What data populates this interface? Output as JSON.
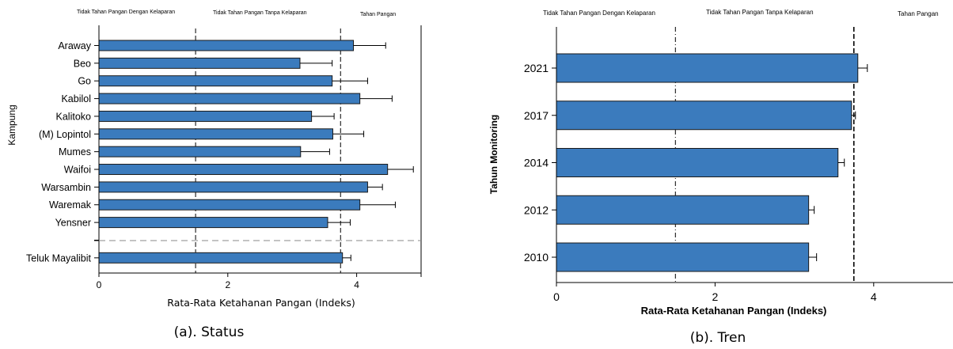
{
  "chart_data": [
    {
      "type": "bar",
      "orientation": "horizontal",
      "caption": "(a). Status",
      "ylabel": "Kampung",
      "xlabel": "Rata-Rata Ketahanan Pangan (Indeks)",
      "xlim": [
        0,
        5
      ],
      "xticks": [
        "0",
        "2",
        "4"
      ],
      "categories": [
        "Araway",
        "Beo",
        "Go",
        "Kabilol",
        "Kalitoko",
        "(M) Lopintol",
        "Mumes",
        "Waifoi",
        "Warsambin",
        "Waremak",
        "Yensner",
        "",
        "Teluk Mayalibit"
      ],
      "values": [
        3.95,
        3.12,
        3.62,
        4.05,
        3.3,
        3.63,
        3.13,
        4.48,
        4.17,
        4.05,
        3.55,
        null,
        3.78
      ],
      "errors": [
        0.5,
        0.5,
        0.55,
        0.5,
        0.35,
        0.48,
        0.45,
        0.4,
        0.23,
        0.55,
        0.35,
        null,
        0.13
      ],
      "reference_lines": [
        {
          "x": 1.5,
          "style": "dashed"
        },
        {
          "x": 3.75,
          "style": "dashed"
        }
      ],
      "zones": [
        "Tidak Tahan Pangan Dengan Kelaparan",
        "Tidak Tahan Pangan Tanpa Kelaparan",
        "Tahan Pangan"
      ],
      "bar_color": "#3b7bbd",
      "grid": false
    },
    {
      "type": "bar",
      "orientation": "horizontal",
      "caption": "(b). Tren",
      "ylabel": "Tahun Monitoring",
      "xlabel": "Rata-Rata Ketahanan Pangan (Indeks)",
      "xlim": [
        0,
        5
      ],
      "xticks": [
        "0",
        "2",
        "4"
      ],
      "categories": [
        "2021",
        "2017",
        "2014",
        "2012",
        "2010"
      ],
      "values": [
        3.8,
        3.72,
        3.55,
        3.18,
        3.18
      ],
      "errors": [
        0.12,
        0.05,
        0.08,
        0.07,
        0.1
      ],
      "reference_lines": [
        {
          "x": 1.5,
          "style": "dash-dot"
        },
        {
          "x": 3.75,
          "style": "dashed"
        }
      ],
      "zones": [
        "Tidak Tahan Pangan Dengan Kelaparan",
        "Tidak Tahan Pangan Tanpa Kelaparan",
        "Tahan Pangan"
      ],
      "bar_color": "#3b7bbd",
      "grid": false
    }
  ]
}
